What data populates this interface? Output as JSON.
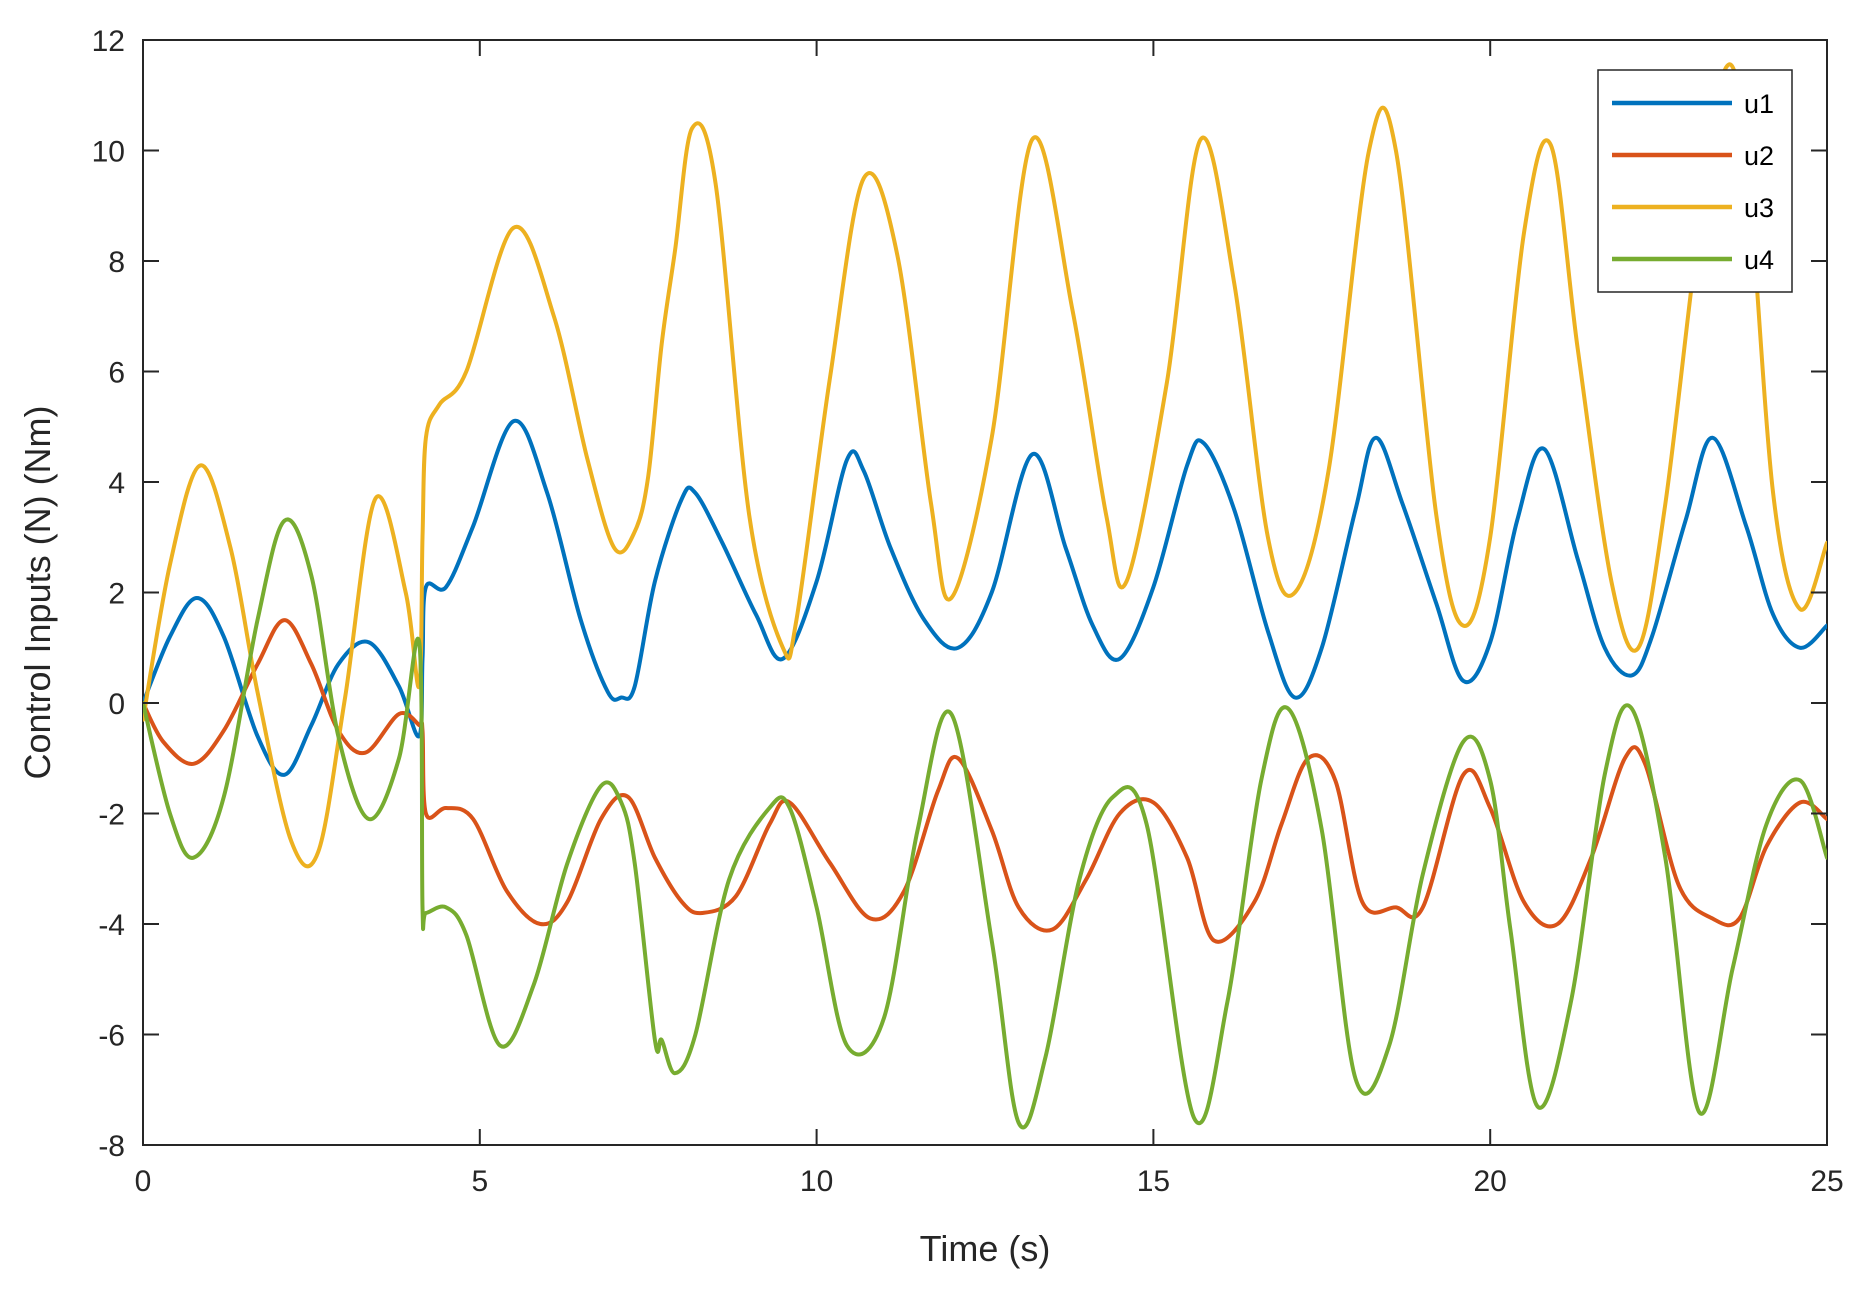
{
  "chart_data": {
    "type": "line",
    "xlabel": "Time (s)",
    "ylabel": "Control Inputs (N) (Nm)",
    "xlim": [
      0,
      25
    ],
    "ylim": [
      -8,
      12
    ],
    "xticks": [
      0,
      5,
      10,
      15,
      20,
      25
    ],
    "yticks": [
      -8,
      -6,
      -4,
      -2,
      0,
      2,
      4,
      6,
      8,
      10,
      12
    ],
    "legend_position": "top-right",
    "grid": false,
    "series": [
      {
        "name": "u1",
        "color": "#0072BD",
        "x": [
          0,
          0.4,
          0.8,
          1.2,
          1.7,
          2.1,
          2.5,
          2.9,
          3.35,
          3.8,
          4.1,
          4.15,
          4.2,
          4.5,
          4.9,
          5.5,
          6.0,
          6.5,
          6.9,
          7.1,
          7.3,
          7.6,
          8.0,
          8.2,
          8.6,
          9.1,
          9.5,
          10.0,
          10.45,
          10.7,
          11.1,
          11.6,
          12.1,
          12.6,
          13.2,
          13.7,
          14.1,
          14.5,
          15.0,
          15.5,
          15.75,
          16.2,
          16.7,
          17.1,
          17.5,
          18.0,
          18.3,
          18.7,
          19.2,
          19.6,
          20.0,
          20.4,
          20.8,
          21.3,
          21.7,
          22.1,
          22.4,
          22.9,
          23.3,
          23.8,
          24.2,
          24.6,
          25.0
        ],
        "values": [
          0,
          1.2,
          1.9,
          1.2,
          -0.6,
          -1.3,
          -0.4,
          0.7,
          1.1,
          0.3,
          -0.6,
          0.8,
          2.1,
          2.1,
          3.2,
          5.1,
          3.8,
          1.5,
          0.2,
          0.1,
          0.3,
          2.2,
          3.7,
          3.8,
          2.9,
          1.6,
          0.8,
          2.2,
          4.4,
          4.2,
          2.8,
          1.5,
          1.0,
          2.0,
          4.5,
          2.8,
          1.4,
          0.8,
          2.1,
          4.3,
          4.7,
          3.5,
          1.3,
          0.1,
          1.0,
          3.5,
          4.8,
          3.6,
          1.8,
          0.4,
          1.1,
          3.3,
          4.6,
          2.6,
          1.0,
          0.5,
          1.2,
          3.3,
          4.8,
          3.2,
          1.6,
          1.0,
          1.4
        ]
      },
      {
        "name": "u2",
        "color": "#D95319",
        "x": [
          0,
          0.3,
          0.75,
          1.2,
          1.7,
          2.1,
          2.5,
          2.9,
          3.3,
          3.8,
          4.1,
          4.15,
          4.2,
          4.5,
          4.9,
          5.4,
          5.9,
          6.3,
          6.8,
          7.2,
          7.6,
          8.0,
          8.3,
          8.8,
          9.3,
          9.6,
          10.2,
          10.8,
          11.3,
          11.8,
          12.1,
          12.6,
          13.0,
          13.5,
          14.0,
          14.5,
          15.0,
          15.5,
          15.9,
          16.5,
          16.9,
          17.3,
          17.7,
          18.1,
          18.6,
          19.0,
          19.6,
          20.0,
          20.5,
          21.0,
          21.5,
          22.0,
          22.3,
          22.8,
          23.3,
          23.7,
          24.1,
          24.6,
          25.0
        ],
        "values": [
          0,
          -0.7,
          -1.1,
          -0.5,
          0.7,
          1.5,
          0.7,
          -0.5,
          -0.9,
          -0.2,
          -0.4,
          -0.5,
          -2.0,
          -1.9,
          -2.1,
          -3.4,
          -4.0,
          -3.6,
          -2.1,
          -1.7,
          -2.8,
          -3.6,
          -3.8,
          -3.5,
          -2.2,
          -1.8,
          -2.9,
          -3.9,
          -3.4,
          -1.6,
          -1.0,
          -2.3,
          -3.7,
          -4.1,
          -3.2,
          -2.0,
          -1.8,
          -2.8,
          -4.3,
          -3.6,
          -2.2,
          -1.0,
          -1.4,
          -3.6,
          -3.7,
          -3.7,
          -1.3,
          -1.9,
          -3.6,
          -4.0,
          -2.8,
          -1.0,
          -1.1,
          -3.3,
          -3.9,
          -3.9,
          -2.6,
          -1.8,
          -2.1
        ]
      },
      {
        "name": "u3",
        "color": "#EDB120",
        "x": [
          0,
          0.4,
          0.85,
          1.3,
          1.7,
          2.2,
          2.6,
          3.0,
          3.45,
          3.9,
          4.1,
          4.15,
          4.2,
          4.4,
          4.8,
          5.5,
          6.1,
          6.6,
          7.0,
          7.3,
          7.5,
          7.7,
          7.9,
          8.15,
          8.5,
          9.0,
          9.5,
          9.7,
          10.2,
          10.7,
          11.2,
          11.7,
          12.0,
          12.6,
          13.2,
          13.8,
          14.3,
          14.6,
          15.2,
          15.7,
          16.2,
          16.7,
          17.1,
          17.6,
          18.2,
          18.6,
          19.2,
          19.6,
          20.0,
          20.5,
          20.9,
          21.3,
          21.8,
          22.2,
          22.6,
          23.1,
          23.5,
          23.8,
          24.2,
          24.6,
          25.0
        ],
        "values": [
          -0.3,
          2.5,
          4.3,
          2.8,
          0.2,
          -2.5,
          -2.7,
          0.1,
          3.7,
          2.0,
          0.3,
          3.0,
          4.8,
          5.4,
          6.0,
          8.6,
          7.0,
          4.4,
          2.8,
          3.1,
          4.1,
          6.5,
          8.2,
          10.4,
          9.4,
          3.4,
          1.0,
          1.5,
          5.9,
          9.5,
          8.1,
          3.6,
          1.9,
          4.8,
          10.2,
          7.1,
          3.4,
          2.2,
          5.8,
          10.2,
          7.6,
          3.0,
          2.0,
          4.2,
          10.0,
          10.0,
          3.4,
          1.4,
          3.0,
          8.5,
          10.1,
          6.4,
          2.2,
          1.0,
          3.6,
          8.6,
          11.5,
          10.0,
          3.8,
          1.7,
          2.9
        ]
      },
      {
        "name": "u4",
        "color": "#77AC30",
        "x": [
          0,
          0.4,
          0.75,
          1.2,
          1.7,
          2.1,
          2.5,
          2.9,
          3.35,
          3.8,
          4.1,
          4.15,
          4.2,
          4.5,
          4.8,
          5.3,
          5.8,
          6.3,
          6.8,
          7.1,
          7.3,
          7.6,
          7.7,
          7.9,
          8.2,
          8.7,
          9.3,
          9.6,
          10.0,
          10.45,
          11.0,
          11.5,
          12.0,
          12.6,
          13.0,
          13.4,
          13.9,
          14.4,
          14.9,
          15.6,
          16.1,
          16.6,
          17.0,
          17.5,
          18.0,
          18.5,
          19.0,
          19.6,
          20.0,
          20.3,
          20.7,
          21.2,
          21.7,
          22.1,
          22.6,
          23.1,
          23.6,
          24.1,
          24.6,
          25.0
        ],
        "values": [
          0,
          -2.0,
          -2.8,
          -1.7,
          1.5,
          3.3,
          2.3,
          -0.6,
          -2.1,
          -1.0,
          1.1,
          -3.7,
          -3.8,
          -3.7,
          -4.2,
          -6.2,
          -5.1,
          -2.9,
          -1.5,
          -1.8,
          -2.9,
          -6.1,
          -6.1,
          -6.7,
          -6.0,
          -3.2,
          -1.9,
          -1.9,
          -3.7,
          -6.2,
          -5.7,
          -2.3,
          -0.2,
          -4.3,
          -7.6,
          -6.4,
          -3.2,
          -1.7,
          -2.2,
          -7.5,
          -5.4,
          -1.4,
          -0.1,
          -2.3,
          -6.8,
          -6.2,
          -3.1,
          -0.7,
          -1.4,
          -4.1,
          -7.3,
          -5.4,
          -1.3,
          -0.1,
          -2.8,
          -7.4,
          -4.8,
          -2.2,
          -1.4,
          -2.8
        ]
      }
    ]
  }
}
